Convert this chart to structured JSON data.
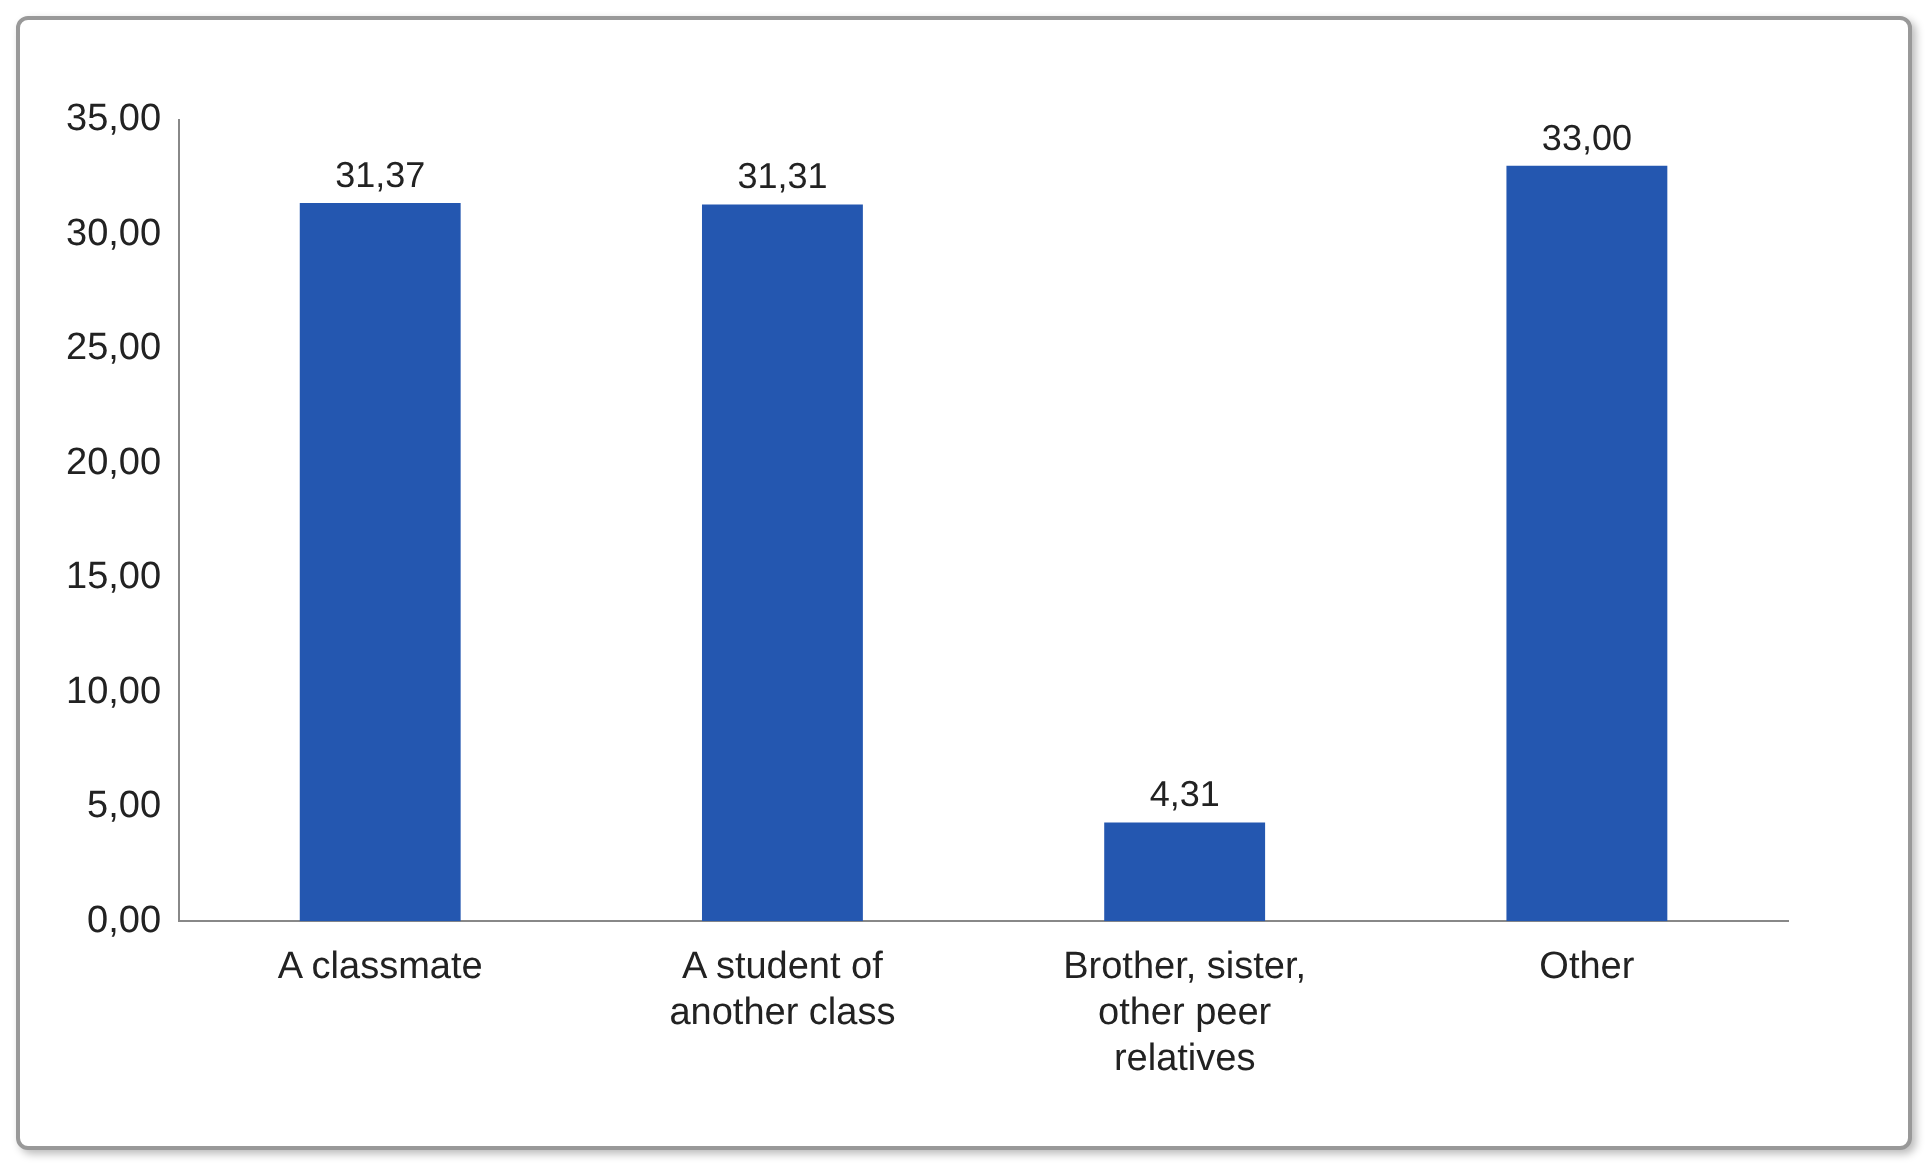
{
  "chart_data": {
    "type": "bar",
    "categories": [
      "A classmate",
      "A student of another class",
      "Brother, sister, other peer relatives",
      "Other"
    ],
    "values": [
      31.37,
      31.31,
      4.31,
      33.0
    ],
    "value_labels": [
      "31,37",
      "31,31",
      "4,31",
      "33,00"
    ],
    "color": "#2457b0",
    "ylim": [
      0,
      35
    ],
    "yticks": [
      {
        "value": 0,
        "label": "0,00"
      },
      {
        "value": 5,
        "label": "5,00"
      },
      {
        "value": 10,
        "label": "10,00"
      },
      {
        "value": 15,
        "label": "15,00"
      },
      {
        "value": 20,
        "label": "20,00"
      },
      {
        "value": 25,
        "label": "25,00"
      },
      {
        "value": 30,
        "label": "30,00"
      },
      {
        "value": 35,
        "label": "35,00"
      }
    ],
    "grid": false,
    "legend": false
  }
}
